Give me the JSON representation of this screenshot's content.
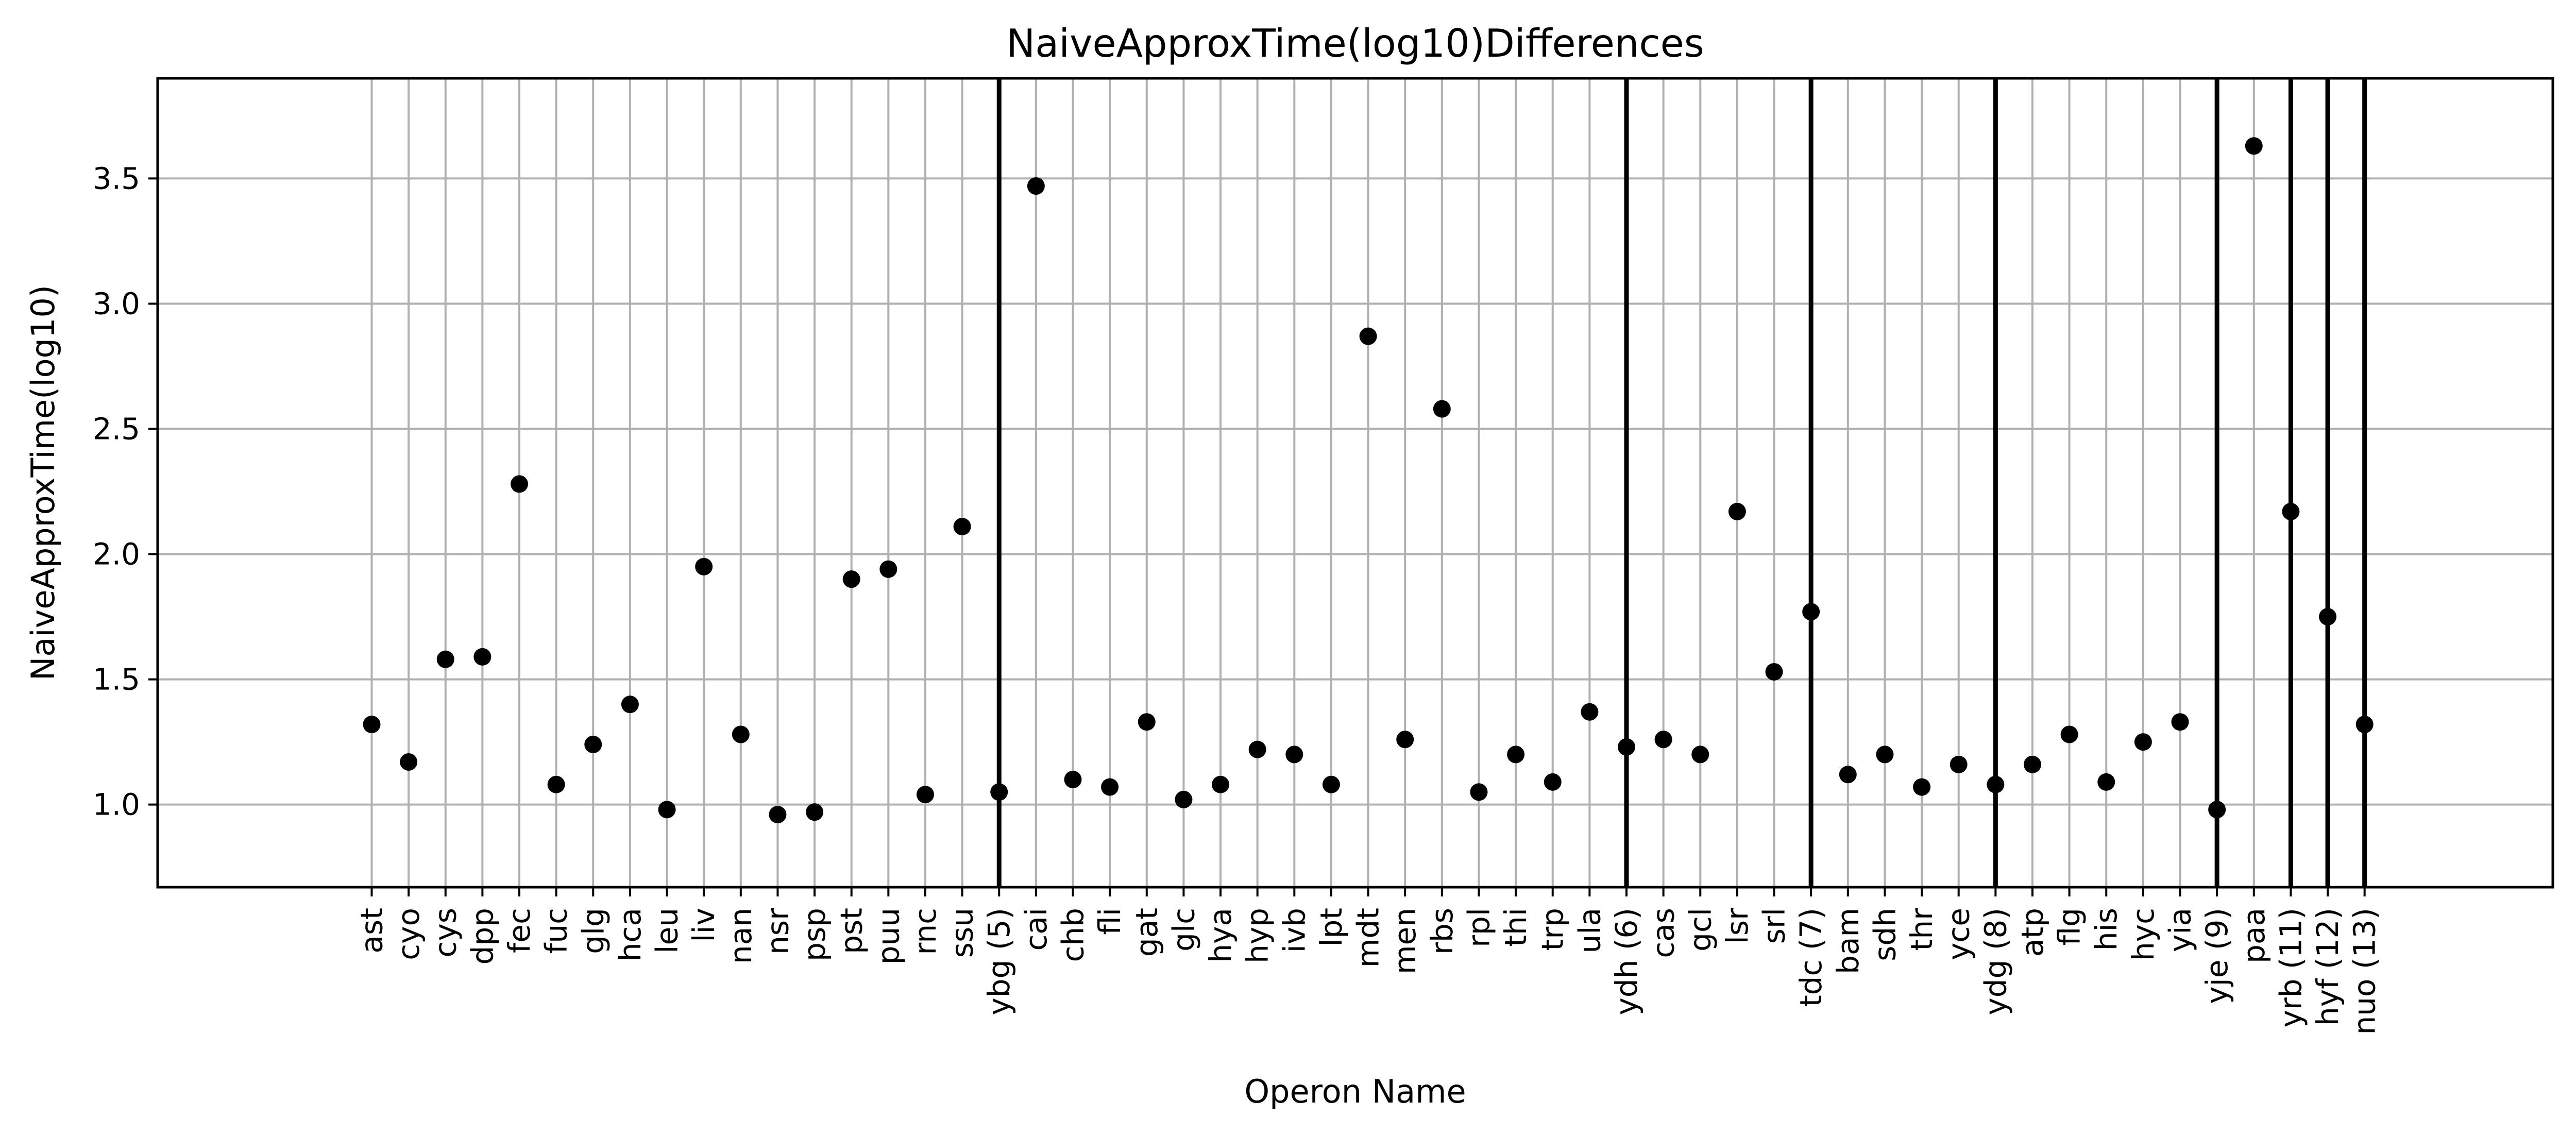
{
  "chart_data": {
    "type": "scatter",
    "title": "NaiveApproxTime(log10)Differences",
    "xlabel": "Operon Name",
    "ylabel": "NaiveApproxTime(log10)",
    "ylim": [
      0.67,
      3.9
    ],
    "yticks": [
      1.0,
      1.5,
      2.0,
      2.5,
      3.0,
      3.5
    ],
    "ytick_labels": [
      "1.0",
      "1.5",
      "2.0",
      "2.5",
      "3.0",
      "3.5"
    ],
    "grid": true,
    "marker_color": "#000000",
    "grid_color": "#b0b0b0",
    "highlight_line_color": "#000000",
    "x_padding_slots": [
      5.8,
      5.1
    ],
    "categories": [
      "ast",
      "cyo",
      "cys",
      "dpp",
      "fec",
      "fuc",
      "glg",
      "hca",
      "leu",
      "liv",
      "nan",
      "nsr",
      "psp",
      "pst",
      "puu",
      "rnc",
      "ssu",
      "ybg (5)",
      "cai",
      "chb",
      "fli",
      "gat",
      "glc",
      "hya",
      "hyp",
      "ivb",
      "lpt",
      "mdt",
      "men",
      "rbs",
      "rpl",
      "thi",
      "trp",
      "ula",
      "ydh (6)",
      "cas",
      "gcl",
      "lsr",
      "srl",
      "tdc (7)",
      "bam",
      "sdh",
      "thr",
      "yce",
      "ydg (8)",
      "atp",
      "flg",
      "his",
      "hyc",
      "yia",
      "yje (9)",
      "paa",
      "yrb (11)",
      "hyf (12)",
      "nuo (13)"
    ],
    "values": [
      1.32,
      1.17,
      1.58,
      1.59,
      2.28,
      1.08,
      1.24,
      1.4,
      0.98,
      1.95,
      1.28,
      0.96,
      0.97,
      1.9,
      1.94,
      1.04,
      2.11,
      1.05,
      3.47,
      1.1,
      1.07,
      1.33,
      1.02,
      1.08,
      1.22,
      1.2,
      1.08,
      2.87,
      1.26,
      2.58,
      1.05,
      1.2,
      1.09,
      1.37,
      1.23,
      1.26,
      1.2,
      2.17,
      1.53,
      1.77,
      1.12,
      1.2,
      1.07,
      1.16,
      1.08,
      1.16,
      1.28,
      1.09,
      1.25,
      1.33,
      0.98,
      3.63,
      2.17,
      1.75,
      1.32
    ],
    "highlighted": [
      "ybg (5)",
      "ydh (6)",
      "tdc (7)",
      "ydg (8)",
      "yje (9)",
      "yrb (11)",
      "hyf (12)",
      "nuo (13)"
    ]
  }
}
